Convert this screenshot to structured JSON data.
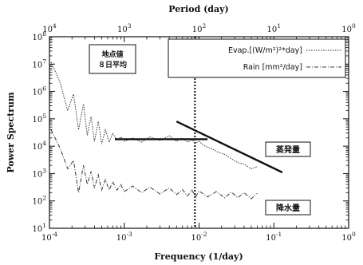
{
  "chart_data": {
    "type": "line",
    "xlabel": "Frequency (1/day)",
    "ylabel": "Power Spectrum",
    "top_axis_label": "Period (day)",
    "x_scale": "log",
    "y_scale": "log",
    "xlim": [
      0.0001,
      1
    ],
    "ylim": [
      10,
      100000000
    ],
    "x_ticks": [
      {
        "value": 0.0001,
        "base": "10",
        "exp": "-4"
      },
      {
        "value": 0.001,
        "base": "10",
        "exp": "-3"
      },
      {
        "value": 0.01,
        "base": "10",
        "exp": "-2"
      },
      {
        "value": 0.1,
        "base": "10",
        "exp": "-1"
      },
      {
        "value": 1,
        "base": "10",
        "exp": "0"
      }
    ],
    "y_ticks": [
      {
        "value": 10,
        "base": "10",
        "exp": "1"
      },
      {
        "value": 100,
        "base": "10",
        "exp": "2"
      },
      {
        "value": 1000,
        "base": "10",
        "exp": "3"
      },
      {
        "value": 10000,
        "base": "10",
        "exp": "4"
      },
      {
        "value": 100000,
        "base": "10",
        "exp": "5"
      },
      {
        "value": 1000000,
        "base": "10",
        "exp": "6"
      },
      {
        "value": 10000000,
        "base": "10",
        "exp": "7"
      },
      {
        "value": 100000000,
        "base": "10",
        "exp": "8"
      }
    ],
    "top_ticks": [
      {
        "period": 10000,
        "base": "10",
        "exp": "4"
      },
      {
        "period": 1000,
        "base": "10",
        "exp": "3"
      },
      {
        "period": 100,
        "base": "10",
        "exp": "2"
      },
      {
        "period": 10,
        "base": "10",
        "exp": "1"
      },
      {
        "period": 1,
        "base": "10",
        "exp": "0"
      }
    ],
    "grid": false,
    "legend_position": "top-right",
    "series": [
      {
        "name": "Evap.[(W/m²)²*day]",
        "style": "dotted",
        "color": "#333333",
        "points": [
          [
            0.000105,
            12000000
          ],
          [
            0.00014,
            2000000
          ],
          [
            0.000175,
            200000
          ],
          [
            0.00021,
            800000
          ],
          [
            0.000245,
            40000
          ],
          [
            0.000285,
            350000
          ],
          [
            0.00032,
            25000
          ],
          [
            0.00036,
            120000
          ],
          [
            0.0004,
            15000
          ],
          [
            0.00045,
            80000
          ],
          [
            0.0005,
            12000
          ],
          [
            0.00056,
            40000
          ],
          [
            0.00063,
            14000
          ],
          [
            0.0007,
            30000
          ],
          [
            0.0008,
            16000
          ],
          [
            0.0009,
            22000
          ],
          [
            0.001,
            15000
          ],
          [
            0.0013,
            20000
          ],
          [
            0.0017,
            14000
          ],
          [
            0.0022,
            22000
          ],
          [
            0.003,
            16000
          ],
          [
            0.004,
            24000
          ],
          [
            0.005,
            15000
          ],
          [
            0.006,
            20000
          ],
          [
            0.007,
            14000
          ],
          [
            0.008,
            17000
          ],
          [
            0.009,
            13000
          ],
          [
            0.01,
            15000
          ],
          [
            0.012,
            10000
          ],
          [
            0.015,
            8000
          ],
          [
            0.018,
            6000
          ],
          [
            0.022,
            5000
          ],
          [
            0.027,
            3500
          ],
          [
            0.033,
            2500
          ],
          [
            0.04,
            2200
          ],
          [
            0.05,
            1500
          ],
          [
            0.06,
            1800
          ]
        ]
      },
      {
        "name": "Rain [mm²/day]",
        "style": "dash-dot",
        "color": "#333333",
        "points": [
          [
            0.000105,
            40000
          ],
          [
            0.00014,
            8000
          ],
          [
            0.000175,
            1500
          ],
          [
            0.00021,
            3000
          ],
          [
            0.000245,
            200
          ],
          [
            0.000285,
            2000
          ],
          [
            0.00032,
            400
          ],
          [
            0.00036,
            1200
          ],
          [
            0.0004,
            300
          ],
          [
            0.00045,
            900
          ],
          [
            0.0005,
            250
          ],
          [
            0.00056,
            600
          ],
          [
            0.00063,
            250
          ],
          [
            0.0007,
            500
          ],
          [
            0.0008,
            250
          ],
          [
            0.0009,
            400
          ],
          [
            0.001,
            220
          ],
          [
            0.0013,
            350
          ],
          [
            0.0017,
            200
          ],
          [
            0.0022,
            320
          ],
          [
            0.003,
            180
          ],
          [
            0.004,
            300
          ],
          [
            0.005,
            170
          ],
          [
            0.006,
            260
          ],
          [
            0.007,
            150
          ],
          [
            0.008,
            250
          ],
          [
            0.009,
            140
          ],
          [
            0.01,
            230
          ],
          [
            0.013,
            140
          ],
          [
            0.017,
            220
          ],
          [
            0.022,
            130
          ],
          [
            0.027,
            210
          ],
          [
            0.033,
            130
          ],
          [
            0.04,
            200
          ],
          [
            0.05,
            120
          ],
          [
            0.06,
            190
          ]
        ]
      }
    ],
    "reference_line": {
      "x": 0.0088,
      "style": "dotted vertical"
    },
    "fit_lines": [
      {
        "name": "flat",
        "from": [
          0.00075,
          18000
        ],
        "to": [
          0.013,
          18000
        ]
      },
      {
        "name": "slope",
        "from": [
          0.005,
          80000
        ],
        "to": [
          0.13,
          1100
        ]
      }
    ],
    "annotations": [
      {
        "id": "note",
        "lines": [
          "地点値",
          "８日平均"
        ]
      },
      {
        "id": "evap_label",
        "text": "蒸発量"
      },
      {
        "id": "rain_label",
        "text": "降水量"
      }
    ]
  }
}
